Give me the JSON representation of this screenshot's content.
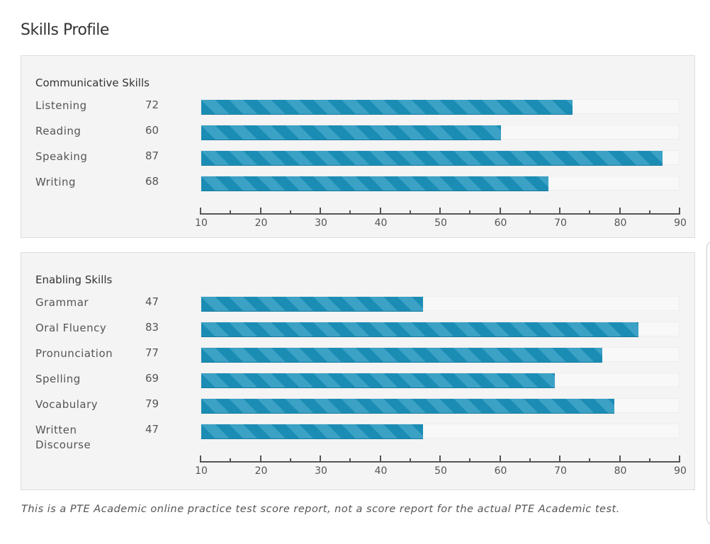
{
  "title": "Skills Profile",
  "footer": "This is a PTE Academic online practice test score report, not a score report for the actual PTE Academic test.",
  "colors": {
    "bar_dark": "#1b8db5",
    "bar_light": "#3ba1c5",
    "track": "#f8f8f8"
  },
  "chart_data": [
    {
      "type": "bar",
      "orientation": "horizontal",
      "title": "Communicative Skills",
      "categories": [
        "Listening",
        "Reading",
        "Speaking",
        "Writing"
      ],
      "values": [
        72,
        60,
        87,
        68
      ],
      "xlim": [
        10,
        90
      ],
      "xticks": [
        10,
        20,
        30,
        40,
        50,
        60,
        70,
        80,
        90
      ]
    },
    {
      "type": "bar",
      "orientation": "horizontal",
      "title": "Enabling Skills",
      "categories": [
        "Grammar",
        "Oral Fluency",
        "Pronunciation",
        "Spelling",
        "Vocabulary",
        "Written Discourse"
      ],
      "values": [
        47,
        83,
        77,
        69,
        79,
        47
      ],
      "xlim": [
        10,
        90
      ],
      "xticks": [
        10,
        20,
        30,
        40,
        50,
        60,
        70,
        80,
        90
      ]
    }
  ]
}
